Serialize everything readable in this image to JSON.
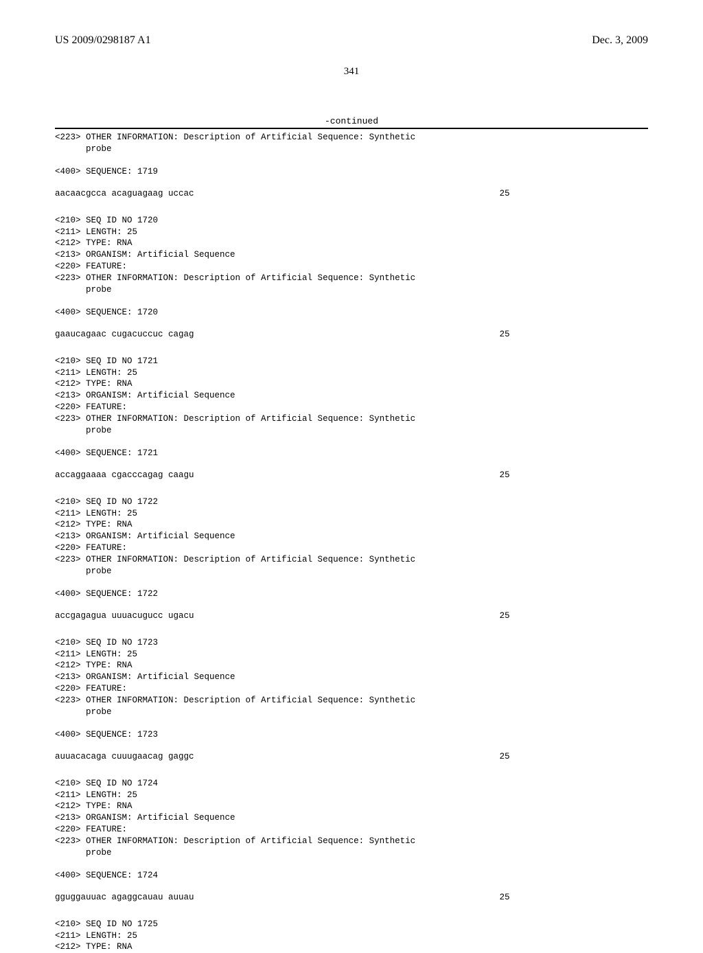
{
  "header": {
    "pub_number": "US 2009/0298187 A1",
    "pub_date": "Dec. 3, 2009"
  },
  "page_number": "341",
  "continued_label": "-continued",
  "entries": [
    {
      "pre_lines": [
        "<223> OTHER INFORMATION: Description of Artificial Sequence: Synthetic",
        "      probe"
      ],
      "seq_label": "<400> SEQUENCE: 1719",
      "sequence": "aacaacgcca acaguagaag uccac",
      "seq_len": "25"
    },
    {
      "pre_lines": [
        "<210> SEQ ID NO 1720",
        "<211> LENGTH: 25",
        "<212> TYPE: RNA",
        "<213> ORGANISM: Artificial Sequence",
        "<220> FEATURE:",
        "<223> OTHER INFORMATION: Description of Artificial Sequence: Synthetic",
        "      probe"
      ],
      "seq_label": "<400> SEQUENCE: 1720",
      "sequence": "gaaucagaac cugacuccuc cagag",
      "seq_len": "25"
    },
    {
      "pre_lines": [
        "<210> SEQ ID NO 1721",
        "<211> LENGTH: 25",
        "<212> TYPE: RNA",
        "<213> ORGANISM: Artificial Sequence",
        "<220> FEATURE:",
        "<223> OTHER INFORMATION: Description of Artificial Sequence: Synthetic",
        "      probe"
      ],
      "seq_label": "<400> SEQUENCE: 1721",
      "sequence": "accaggaaaa cgacccagag caagu",
      "seq_len": "25"
    },
    {
      "pre_lines": [
        "<210> SEQ ID NO 1722",
        "<211> LENGTH: 25",
        "<212> TYPE: RNA",
        "<213> ORGANISM: Artificial Sequence",
        "<220> FEATURE:",
        "<223> OTHER INFORMATION: Description of Artificial Sequence: Synthetic",
        "      probe"
      ],
      "seq_label": "<400> SEQUENCE: 1722",
      "sequence": "accgagagua uuuacugucc ugacu",
      "seq_len": "25"
    },
    {
      "pre_lines": [
        "<210> SEQ ID NO 1723",
        "<211> LENGTH: 25",
        "<212> TYPE: RNA",
        "<213> ORGANISM: Artificial Sequence",
        "<220> FEATURE:",
        "<223> OTHER INFORMATION: Description of Artificial Sequence: Synthetic",
        "      probe"
      ],
      "seq_label": "<400> SEQUENCE: 1723",
      "sequence": "auuacacaga cuuugaacag gaggc",
      "seq_len": "25"
    },
    {
      "pre_lines": [
        "<210> SEQ ID NO 1724",
        "<211> LENGTH: 25",
        "<212> TYPE: RNA",
        "<213> ORGANISM: Artificial Sequence",
        "<220> FEATURE:",
        "<223> OTHER INFORMATION: Description of Artificial Sequence: Synthetic",
        "      probe"
      ],
      "seq_label": "<400> SEQUENCE: 1724",
      "sequence": "gguggauuac agaggcauau auuau",
      "seq_len": "25"
    }
  ],
  "tail_lines": [
    "<210> SEQ ID NO 1725",
    "<211> LENGTH: 25",
    "<212> TYPE: RNA"
  ]
}
